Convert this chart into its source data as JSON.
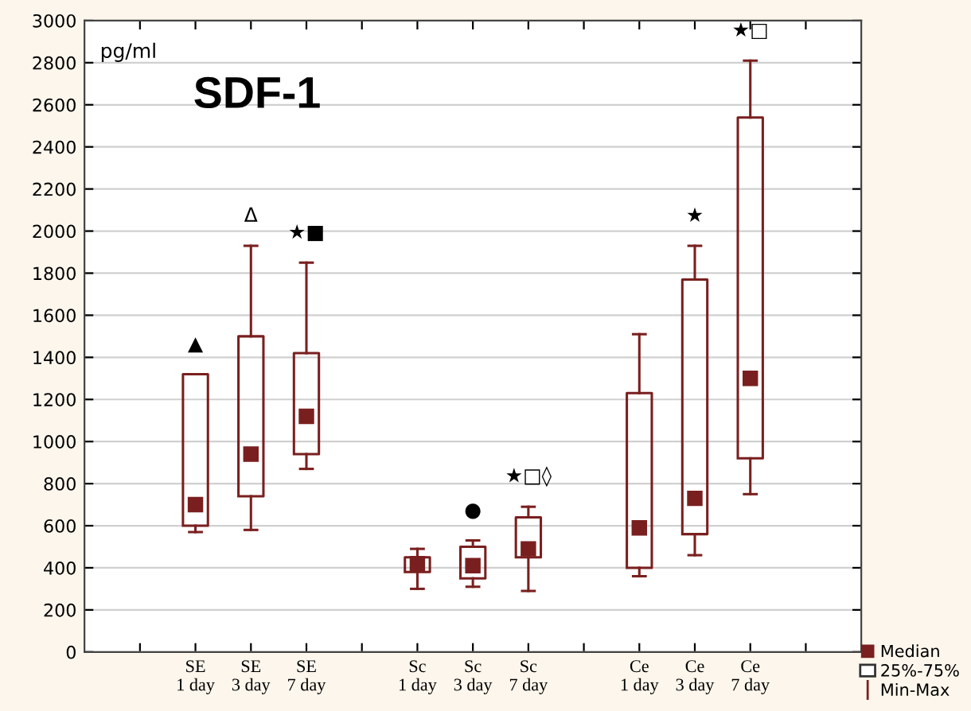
{
  "chart_data": {
    "type": "box",
    "title": "SDF-1",
    "ylabel": "pg/ml",
    "categories": [
      null,
      "SE\n1 day",
      "SE\n3 day",
      "SE\n7 day",
      null,
      "Sc\n1 day",
      "Sc\n3 day",
      "Sc\n7 day",
      null,
      "Ce\n1 day",
      "Ce\n3 day",
      "Ce\n7 day",
      null
    ],
    "series": [
      {
        "name": "Median",
        "color": "#7a1f1f",
        "value_labels": [
          null,
          "▲",
          "Δ",
          "★■",
          null,
          null,
          "●",
          "★□◊",
          null,
          null,
          "★",
          "★□",
          null
        ],
        "boxes": [
          null,
          {
            "low": 570,
            "q1": 600,
            "median": 700,
            "q3": 1320,
            "high": 1320
          },
          {
            "low": 580,
            "q1": 740,
            "median": 940,
            "q3": 1500,
            "high": 1930
          },
          {
            "low": 870,
            "q1": 940,
            "median": 1120,
            "q3": 1420,
            "high": 1850
          },
          null,
          {
            "low": 300,
            "q1": 380,
            "median": 420,
            "q3": 450,
            "high": 490
          },
          {
            "low": 310,
            "q1": 350,
            "median": 410,
            "q3": 500,
            "high": 530
          },
          {
            "low": 290,
            "q1": 450,
            "median": 490,
            "q3": 640,
            "high": 690
          },
          null,
          {
            "low": 360,
            "q1": 400,
            "median": 590,
            "q3": 1230,
            "high": 1510
          },
          {
            "low": 460,
            "q1": 560,
            "median": 730,
            "q3": 1770,
            "high": 1930
          },
          {
            "low": 750,
            "q1": 920,
            "median": 1300,
            "q3": 2540,
            "high": 2810
          },
          null
        ]
      }
    ],
    "ylim": [
      0,
      3000
    ],
    "yticks": [
      0,
      200,
      400,
      600,
      800,
      1000,
      1200,
      1400,
      1600,
      1800,
      2000,
      2200,
      2400,
      2600,
      2800,
      3000
    ],
    "grid": "y",
    "legend": "bottom right",
    "annotations": [
      "25%-75%",
      "Min-Max"
    ]
  }
}
